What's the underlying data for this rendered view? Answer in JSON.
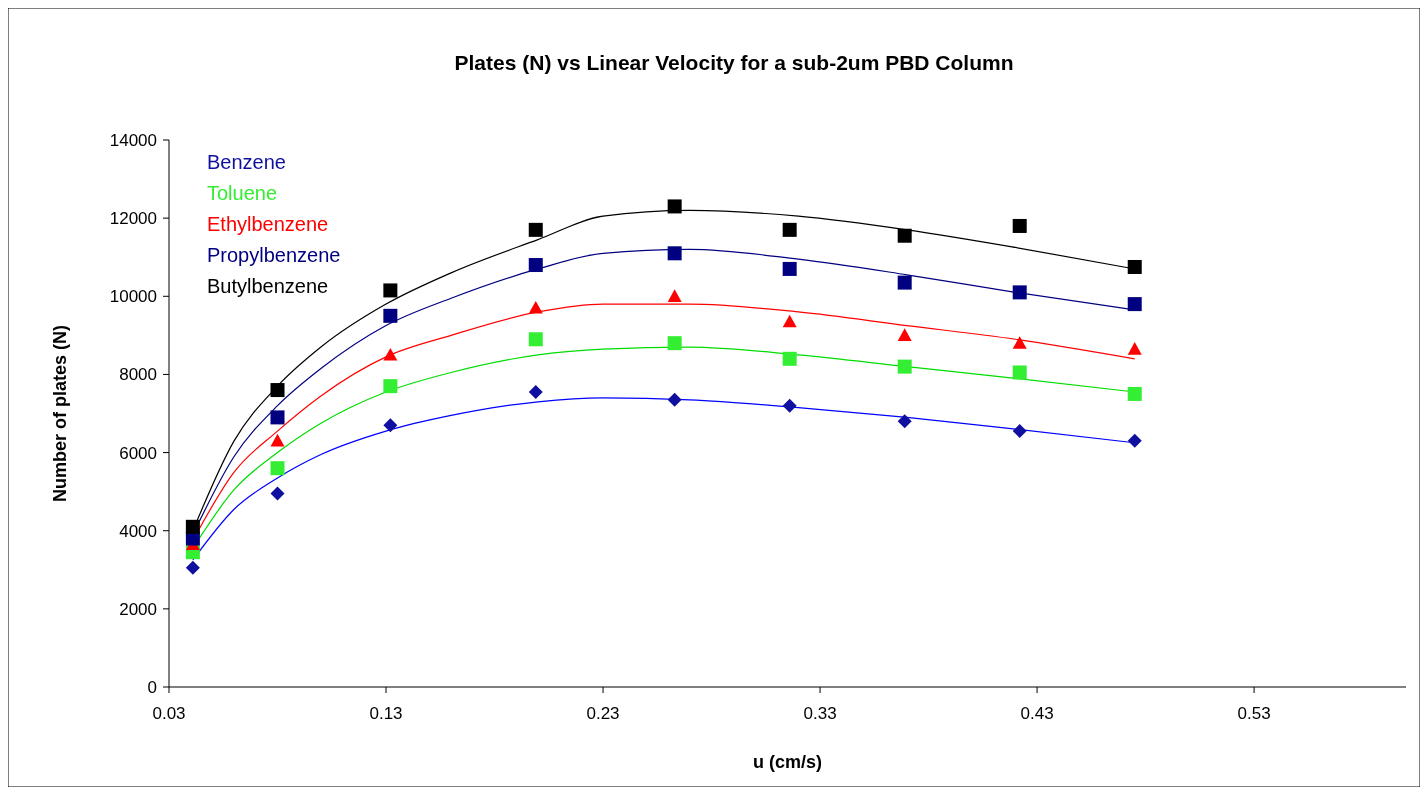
{
  "chart_data": {
    "type": "scatter",
    "title": "Plates (N) vs Linear Velocity for a sub-2um PBD Column",
    "xlabel": "u (cm/s)",
    "ylabel": "Number of plates (N)",
    "xlim": [
      0.03,
      0.6
    ],
    "xticks": [
      0.03,
      0.13,
      0.23,
      0.33,
      0.43,
      0.53
    ],
    "ylim": [
      0,
      14000
    ],
    "yticks": [
      0,
      2000,
      4000,
      6000,
      8000,
      10000,
      12000,
      14000
    ],
    "grid": false,
    "legend": "top left",
    "x": [
      0.041,
      0.08,
      0.132,
      0.199,
      0.263,
      0.316,
      0.369,
      0.422,
      0.475
    ],
    "series": [
      {
        "name": "Benzene",
        "color": "#1010a0",
        "marker": "diamond",
        "values": [
          3050,
          4950,
          6700,
          7550,
          7350,
          7200,
          6800,
          6550,
          6300
        ]
      },
      {
        "name": "Toluene",
        "color": "#33ee33",
        "marker": "square",
        "values": [
          3450,
          5600,
          7700,
          8900,
          8800,
          8400,
          8200,
          8050,
          7500
        ]
      },
      {
        "name": "Ethylbenzene",
        "color": "#ff0000",
        "marker": "triangle",
        "values": [
          3650,
          6300,
          8500,
          9700,
          10000,
          9350,
          9000,
          8800,
          8650
        ]
      },
      {
        "name": "Propylbenzene",
        "color": "#000080",
        "marker": "square",
        "values": [
          3800,
          6900,
          9500,
          10800,
          11100,
          10700,
          10350,
          10100,
          9800
        ]
      },
      {
        "name": "Butylbenzene",
        "color": "#000000",
        "marker": "square",
        "values": [
          4100,
          7600,
          10150,
          11700,
          12300,
          11700,
          11550,
          11800,
          10750
        ]
      },
      {
        "type": "line",
        "color": "#0000ff",
        "x": [
          0.041,
          0.06,
          0.08,
          0.1,
          0.13,
          0.16,
          0.2,
          0.23,
          0.27,
          0.32,
          0.37,
          0.42,
          0.475
        ],
        "values": [
          3250,
          4550,
          5350,
          5950,
          6550,
          6950,
          7300,
          7400,
          7350,
          7150,
          6900,
          6600,
          6250
        ]
      },
      {
        "type": "line",
        "color": "#00dd00",
        "x": [
          0.041,
          0.06,
          0.08,
          0.1,
          0.13,
          0.16,
          0.2,
          0.23,
          0.27,
          0.32,
          0.37,
          0.42,
          0.475
        ],
        "values": [
          3550,
          5050,
          6000,
          6750,
          7550,
          8050,
          8500,
          8650,
          8700,
          8500,
          8200,
          7900,
          7550
        ]
      },
      {
        "type": "line",
        "color": "#ff0000",
        "x": [
          0.041,
          0.06,
          0.08,
          0.1,
          0.13,
          0.16,
          0.2,
          0.23,
          0.27,
          0.32,
          0.37,
          0.42,
          0.475
        ],
        "values": [
          3750,
          5500,
          6550,
          7450,
          8450,
          9000,
          9600,
          9800,
          9800,
          9600,
          9250,
          8900,
          8400
        ]
      },
      {
        "type": "line",
        "color": "#000080",
        "x": [
          0.041,
          0.06,
          0.08,
          0.1,
          0.13,
          0.16,
          0.2,
          0.23,
          0.27,
          0.32,
          0.37,
          0.42,
          0.475
        ],
        "values": [
          3900,
          5900,
          7200,
          8150,
          9250,
          9950,
          10700,
          11100,
          11200,
          10950,
          10550,
          10100,
          9650
        ]
      },
      {
        "type": "line",
        "color": "#000000",
        "x": [
          0.041,
          0.06,
          0.08,
          0.1,
          0.13,
          0.16,
          0.2,
          0.23,
          0.27,
          0.32,
          0.37,
          0.42,
          0.475
        ],
        "values": [
          4000,
          6300,
          7700,
          8700,
          9800,
          10600,
          11450,
          12050,
          12200,
          12050,
          11700,
          11250,
          10700
        ]
      }
    ]
  }
}
